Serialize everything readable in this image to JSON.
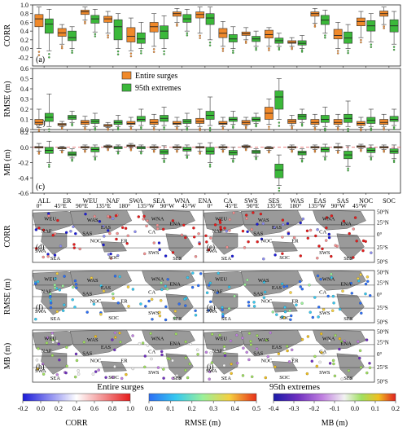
{
  "chart_data": [
    {
      "type": "box",
      "panel_label": "(a)",
      "ylabel": "CORR",
      "ylim": [
        -0.4,
        1.0
      ],
      "yticks": [
        -0.2,
        0.0,
        0.2,
        0.4,
        0.6,
        0.8,
        1.0
      ],
      "categories": [
        "ALL",
        "ER",
        "WEU",
        "NAF",
        "SWA",
        "SEA",
        "WNA",
        "ENA",
        "CA",
        "SWS",
        "SES",
        "WAS",
        "EAS",
        "SAS",
        "NOC",
        "SOC"
      ],
      "series": [
        {
          "name": "Entire surges",
          "color": "#f0892a",
          "q1": [
            0.5,
            0.28,
            0.78,
            0.6,
            0.15,
            0.38,
            0.74,
            0.7,
            0.25,
            0.3,
            0.24,
            0.12,
            0.74,
            0.22,
            0.52,
            0.74
          ],
          "median": [
            0.68,
            0.36,
            0.84,
            0.68,
            0.28,
            0.5,
            0.8,
            0.78,
            0.35,
            0.34,
            0.32,
            0.14,
            0.8,
            0.3,
            0.62,
            0.8
          ],
          "q3": [
            0.78,
            0.46,
            0.88,
            0.74,
            0.48,
            0.6,
            0.84,
            0.84,
            0.46,
            0.38,
            0.42,
            0.18,
            0.84,
            0.44,
            0.7,
            0.86
          ],
          "wlo": [
            0.0,
            0.1,
            0.65,
            0.35,
            -0.05,
            0.05,
            0.6,
            0.35,
            0.05,
            0.2,
            0.05,
            0.05,
            0.58,
            0.0,
            0.25,
            0.55
          ],
          "whi": [
            0.95,
            0.55,
            0.95,
            0.85,
            0.7,
            0.8,
            0.92,
            0.95,
            0.62,
            0.48,
            0.48,
            0.25,
            0.92,
            0.6,
            0.85,
            0.95
          ]
        },
        {
          "name": "95th extremes",
          "color": "#3bb83a",
          "q1": [
            0.35,
            0.18,
            0.58,
            0.2,
            0.12,
            0.22,
            0.6,
            0.55,
            0.15,
            0.16,
            0.12,
            0.08,
            0.55,
            0.12,
            0.4,
            0.38
          ],
          "median": [
            0.56,
            0.25,
            0.68,
            0.5,
            0.22,
            0.4,
            0.68,
            0.7,
            0.22,
            0.22,
            0.18,
            0.12,
            0.65,
            0.24,
            0.52,
            0.52
          ],
          "q3": [
            0.68,
            0.4,
            0.76,
            0.66,
            0.36,
            0.52,
            0.78,
            0.8,
            0.32,
            0.28,
            0.24,
            0.18,
            0.76,
            0.38,
            0.64,
            0.66
          ],
          "wlo": [
            -0.05,
            0.0,
            0.38,
            0.0,
            0.0,
            0.0,
            0.4,
            0.2,
            0.0,
            0.05,
            0.05,
            0.0,
            0.35,
            0.0,
            0.15,
            0.1
          ],
          "whi": [
            0.9,
            0.5,
            0.9,
            0.8,
            0.6,
            0.75,
            0.9,
            0.95,
            0.5,
            0.4,
            0.35,
            0.3,
            0.88,
            0.55,
            0.8,
            0.85
          ]
        }
      ]
    },
    {
      "type": "box",
      "panel_label": "(b)",
      "ylabel": "RMSE (m)",
      "ylim": [
        0.0,
        0.6
      ],
      "yticks": [
        0.0,
        0.1,
        0.2,
        0.3,
        0.4,
        0.5,
        0.6
      ],
      "categories": [
        "ALL",
        "ER",
        "WEU",
        "NAF",
        "SWA",
        "SEA",
        "WNA",
        "ENA",
        "CA",
        "SWS",
        "SES",
        "WAS",
        "EAS",
        "SAS",
        "NOC",
        "SOC"
      ],
      "legend": [
        "Entire surges",
        "95th extremes"
      ],
      "series": [
        {
          "name": "Entire surges",
          "color": "#f0892a",
          "q1": [
            0.05,
            0.04,
            0.05,
            0.03,
            0.05,
            0.05,
            0.05,
            0.06,
            0.05,
            0.05,
            0.1,
            0.06,
            0.05,
            0.05,
            0.04,
            0.05
          ],
          "median": [
            0.07,
            0.05,
            0.07,
            0.04,
            0.06,
            0.07,
            0.06,
            0.08,
            0.06,
            0.07,
            0.16,
            0.08,
            0.07,
            0.07,
            0.06,
            0.07
          ],
          "q3": [
            0.1,
            0.06,
            0.09,
            0.05,
            0.08,
            0.1,
            0.08,
            0.11,
            0.08,
            0.09,
            0.22,
            0.1,
            0.1,
            0.1,
            0.08,
            0.1
          ],
          "wlo": [
            0.02,
            0.03,
            0.03,
            0.02,
            0.03,
            0.03,
            0.03,
            0.03,
            0.03,
            0.04,
            0.05,
            0.04,
            0.03,
            0.03,
            0.02,
            0.03
          ],
          "whi": [
            0.2,
            0.08,
            0.13,
            0.07,
            0.12,
            0.15,
            0.12,
            0.2,
            0.12,
            0.12,
            0.3,
            0.14,
            0.15,
            0.15,
            0.12,
            0.15
          ]
        },
        {
          "name": "95th extremes",
          "color": "#3bb83a",
          "q1": [
            0.08,
            0.1,
            0.06,
            0.05,
            0.08,
            0.08,
            0.06,
            0.1,
            0.08,
            0.08,
            0.2,
            0.1,
            0.07,
            0.07,
            0.06,
            0.08
          ],
          "median": [
            0.12,
            0.12,
            0.08,
            0.07,
            0.1,
            0.11,
            0.08,
            0.14,
            0.1,
            0.1,
            0.32,
            0.13,
            0.1,
            0.11,
            0.09,
            0.1
          ],
          "q3": [
            0.16,
            0.14,
            0.1,
            0.09,
            0.13,
            0.14,
            0.1,
            0.18,
            0.12,
            0.12,
            0.38,
            0.15,
            0.14,
            0.15,
            0.12,
            0.13
          ],
          "wlo": [
            0.03,
            0.07,
            0.03,
            0.03,
            0.04,
            0.04,
            0.03,
            0.04,
            0.05,
            0.06,
            0.1,
            0.07,
            0.03,
            0.03,
            0.03,
            0.04
          ],
          "whi": [
            0.35,
            0.18,
            0.16,
            0.14,
            0.2,
            0.22,
            0.16,
            0.32,
            0.18,
            0.16,
            0.5,
            0.2,
            0.22,
            0.28,
            0.2,
            0.2
          ]
        }
      ]
    },
    {
      "type": "box",
      "panel_label": "(c)",
      "ylabel": "MB (m)",
      "ylim": [
        -0.6,
        0.2
      ],
      "yticks": [
        -0.6,
        -0.4,
        -0.2,
        0.0,
        0.2
      ],
      "reference_line": 0.0,
      "categories": [
        "ALL",
        "ER",
        "WEU",
        "NAF",
        "SWA",
        "SEA",
        "WNA",
        "ENA",
        "CA",
        "SWS",
        "SES",
        "WAS",
        "EAS",
        "SAS",
        "NOC",
        "SOC"
      ],
      "series": [
        {
          "name": "Entire surges",
          "color": "#f0892a",
          "q1": [
            -0.01,
            -0.02,
            -0.01,
            0.0,
            0.01,
            -0.01,
            -0.01,
            -0.01,
            -0.01,
            0.0,
            -0.02,
            -0.01,
            -0.01,
            -0.01,
            0.0,
            -0.01
          ],
          "median": [
            0.0,
            -0.01,
            0.0,
            0.01,
            0.02,
            0.0,
            0.0,
            0.0,
            0.0,
            0.01,
            -0.01,
            0.0,
            0.0,
            0.0,
            0.01,
            0.0
          ],
          "q3": [
            0.01,
            0.0,
            0.01,
            0.02,
            0.03,
            0.01,
            0.01,
            0.01,
            0.01,
            0.02,
            0.0,
            0.01,
            0.01,
            0.01,
            0.02,
            0.01
          ],
          "wlo": [
            -0.05,
            -0.04,
            -0.03,
            -0.01,
            -0.01,
            -0.03,
            -0.03,
            -0.05,
            -0.03,
            -0.01,
            -0.04,
            -0.03,
            -0.03,
            -0.04,
            -0.02,
            -0.03
          ],
          "whi": [
            0.05,
            0.01,
            0.03,
            0.03,
            0.05,
            0.03,
            0.03,
            0.05,
            0.03,
            0.03,
            0.01,
            0.03,
            0.03,
            0.05,
            0.04,
            0.03
          ]
        },
        {
          "name": "95th extremes",
          "color": "#3bb83a",
          "q1": [
            -0.08,
            -0.11,
            -0.06,
            -0.02,
            -0.02,
            -0.09,
            -0.05,
            -0.09,
            -0.1,
            -0.08,
            -0.4,
            -0.1,
            -0.06,
            -0.15,
            -0.07,
            -0.08
          ],
          "median": [
            -0.04,
            -0.09,
            -0.03,
            0.0,
            0.0,
            -0.06,
            -0.03,
            -0.05,
            -0.07,
            -0.06,
            -0.3,
            -0.07,
            -0.03,
            -0.1,
            -0.04,
            -0.05
          ],
          "q3": [
            0.0,
            -0.06,
            0.0,
            0.01,
            0.01,
            -0.03,
            0.0,
            0.0,
            -0.04,
            -0.04,
            -0.22,
            -0.05,
            0.0,
            -0.05,
            -0.01,
            -0.02
          ],
          "wlo": [
            -0.2,
            -0.14,
            -0.12,
            -0.05,
            -0.05,
            -0.15,
            -0.1,
            -0.2,
            -0.15,
            -0.12,
            -0.5,
            -0.15,
            -0.12,
            -0.25,
            -0.12,
            -0.15
          ],
          "whi": [
            0.08,
            -0.02,
            0.03,
            0.03,
            0.03,
            0.02,
            0.03,
            0.06,
            0.0,
            -0.02,
            -0.1,
            -0.02,
            0.04,
            0.02,
            0.03,
            0.03
          ]
        }
      ]
    }
  ],
  "maps": {
    "lon_labels": [
      "0°",
      "45°E",
      "90°E",
      "135°E",
      "180°",
      "135°W",
      "90°W",
      "45°W"
    ],
    "lat_labels": [
      "50°N",
      "25°N",
      "0°",
      "25°S",
      "50°S"
    ],
    "region_labels": [
      "WEU",
      "WAS",
      "WNA",
      "NAF",
      "EAS",
      "ENA",
      "CA",
      "SAS",
      "ER",
      "NOC",
      "SEA",
      "SWA",
      "SOC",
      "SWS",
      "SES"
    ],
    "rows": [
      {
        "ylabel": "CORR",
        "left": "(d)",
        "right": "(e)"
      },
      {
        "ylabel": "RMSE (m)",
        "left": "(f)",
        "right": "(g)"
      },
      {
        "ylabel": "MB (m)",
        "left": "(h)",
        "right": "(i)"
      }
    ],
    "col_titles": [
      "Entire surges",
      "95th extremes"
    ]
  },
  "colorbars": [
    {
      "label": "CORR",
      "ticks": [
        "-0.2",
        "0.0",
        "0.2",
        "0.4",
        "0.6",
        "0.8",
        "1.0"
      ],
      "colors": [
        "#1b1bd8",
        "#8c8cf0",
        "#ffffff",
        "#f29090",
        "#e61a1a"
      ]
    },
    {
      "label": "RMSE (m)",
      "ticks": [
        "0.0",
        "0.1",
        "0.2",
        "0.3",
        "0.4",
        "0.5"
      ],
      "colors": [
        "#2b6ef5",
        "#35c8f0",
        "#9af09a",
        "#f5d040",
        "#e83018"
      ]
    },
    {
      "label": "MB (m)",
      "ticks": [
        "-0.4",
        "-0.3",
        "-0.2",
        "-0.1",
        "0.0",
        "0.1",
        "0.2"
      ],
      "colors": [
        "#1a1aa8",
        "#7030c0",
        "#c080e0",
        "#f2f2f2",
        "#a0e060",
        "#f0c020",
        "#e02020"
      ]
    }
  ]
}
